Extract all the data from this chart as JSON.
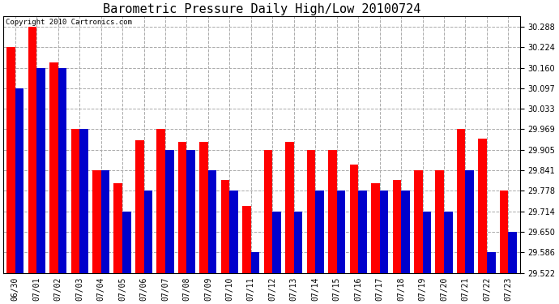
{
  "title": "Barometric Pressure Daily High/Low 20100724",
  "copyright": "Copyright 2010 Cartronics.com",
  "dates": [
    "06/30",
    "07/01",
    "07/02",
    "07/03",
    "07/04",
    "07/05",
    "07/06",
    "07/07",
    "07/08",
    "07/09",
    "07/10",
    "07/11",
    "07/12",
    "07/13",
    "07/14",
    "07/15",
    "07/16",
    "07/17",
    "07/18",
    "07/19",
    "07/20",
    "07/21",
    "07/22",
    "07/23"
  ],
  "highs": [
    30.224,
    30.288,
    30.176,
    29.969,
    29.841,
    29.8,
    29.935,
    29.969,
    29.93,
    29.93,
    29.81,
    29.73,
    29.905,
    29.93,
    29.905,
    29.905,
    29.86,
    29.8,
    29.81,
    29.841,
    29.841,
    29.969,
    29.94,
    29.778
  ],
  "lows": [
    30.097,
    30.16,
    30.16,
    29.969,
    29.841,
    29.714,
    29.778,
    29.905,
    29.905,
    29.841,
    29.778,
    29.586,
    29.714,
    29.714,
    29.778,
    29.778,
    29.778,
    29.778,
    29.778,
    29.714,
    29.714,
    29.841,
    29.586,
    29.65
  ],
  "high_color": "#ff0000",
  "low_color": "#0000cc",
  "background_color": "#ffffff",
  "plot_bg_color": "#ffffff",
  "grid_color": "#aaaaaa",
  "yticks": [
    29.522,
    29.586,
    29.65,
    29.714,
    29.778,
    29.841,
    29.905,
    29.969,
    30.033,
    30.097,
    30.16,
    30.224,
    30.288
  ],
  "ymin": 29.522,
  "ymax": 30.32,
  "title_fontsize": 11,
  "copyright_fontsize": 6.5,
  "tick_fontsize": 7,
  "xlabel_fontsize": 7
}
